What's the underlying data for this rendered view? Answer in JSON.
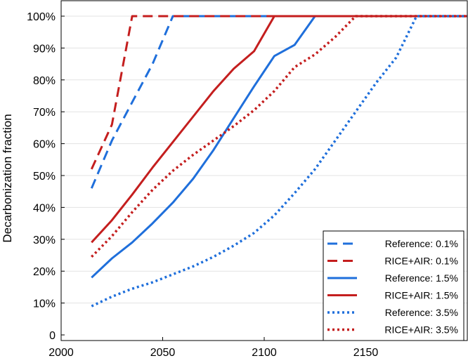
{
  "chart_data": {
    "type": "line",
    "title": "",
    "xlabel": "",
    "ylabel": "Decarbonization fraction",
    "xlim": [
      2000,
      2200
    ],
    "ylim": [
      0,
      1
    ],
    "x_ticks": [
      2000,
      2050,
      2100,
      2150
    ],
    "x_tick_labels": [
      "2000",
      "2050",
      "2100",
      "2150"
    ],
    "y_ticks": [
      0,
      0.1,
      0.2,
      0.3,
      0.4,
      0.5,
      0.6,
      0.7,
      0.8,
      0.9,
      1.0
    ],
    "y_tick_labels": [
      "0",
      "10%",
      "20%",
      "30%",
      "40%",
      "50%",
      "60%",
      "70%",
      "80%",
      "90%",
      "100%"
    ],
    "grid": "horizontal",
    "legend_position": "bottom-right",
    "colors": {
      "reference": "#1f6fdb",
      "rice_air": "#c41e1e"
    },
    "series": [
      {
        "name": "Reference: 0.1%",
        "color": "#1f6fdb",
        "dash": "dashed",
        "x": [
          2015,
          2025,
          2035,
          2045,
          2055,
          2065,
          2200
        ],
        "y": [
          0.46,
          0.61,
          0.73,
          0.85,
          1.0,
          1.0,
          1.0
        ]
      },
      {
        "name": "RICE+AIR: 0.1%",
        "color": "#c41e1e",
        "dash": "dashed",
        "x": [
          2015,
          2025,
          2035,
          2045,
          2200
        ],
        "y": [
          0.52,
          0.66,
          1.0,
          1.0,
          1.0
        ]
      },
      {
        "name": "Reference: 1.5%",
        "color": "#1f6fdb",
        "dash": "solid",
        "x": [
          2015,
          2025,
          2035,
          2045,
          2055,
          2065,
          2075,
          2085,
          2095,
          2105,
          2115,
          2125,
          2200
        ],
        "y": [
          0.18,
          0.24,
          0.29,
          0.35,
          0.415,
          0.49,
          0.58,
          0.68,
          0.78,
          0.875,
          0.91,
          1.0,
          1.0
        ]
      },
      {
        "name": "RICE+AIR: 1.5%",
        "color": "#c41e1e",
        "dash": "solid",
        "x": [
          2015,
          2025,
          2035,
          2045,
          2055,
          2065,
          2075,
          2085,
          2095,
          2105,
          2200
        ],
        "y": [
          0.29,
          0.36,
          0.44,
          0.525,
          0.605,
          0.685,
          0.765,
          0.835,
          0.89,
          1.0,
          1.0
        ]
      },
      {
        "name": "Reference: 3.5%",
        "color": "#1f6fdb",
        "dash": "dotted",
        "x": [
          2015,
          2025,
          2035,
          2045,
          2055,
          2065,
          2075,
          2085,
          2095,
          2105,
          2115,
          2125,
          2135,
          2145,
          2155,
          2165,
          2175,
          2200
        ],
        "y": [
          0.09,
          0.12,
          0.145,
          0.165,
          0.19,
          0.215,
          0.245,
          0.28,
          0.32,
          0.375,
          0.445,
          0.52,
          0.61,
          0.7,
          0.79,
          0.87,
          1.0,
          1.0
        ]
      },
      {
        "name": "RICE+AIR: 3.5%",
        "color": "#c41e1e",
        "dash": "dotted",
        "x": [
          2015,
          2025,
          2035,
          2045,
          2055,
          2065,
          2075,
          2085,
          2095,
          2105,
          2115,
          2125,
          2135,
          2145,
          2200
        ],
        "y": [
          0.245,
          0.31,
          0.385,
          0.455,
          0.515,
          0.565,
          0.61,
          0.655,
          0.705,
          0.765,
          0.84,
          0.88,
          0.935,
          1.0,
          1.0
        ]
      }
    ]
  }
}
